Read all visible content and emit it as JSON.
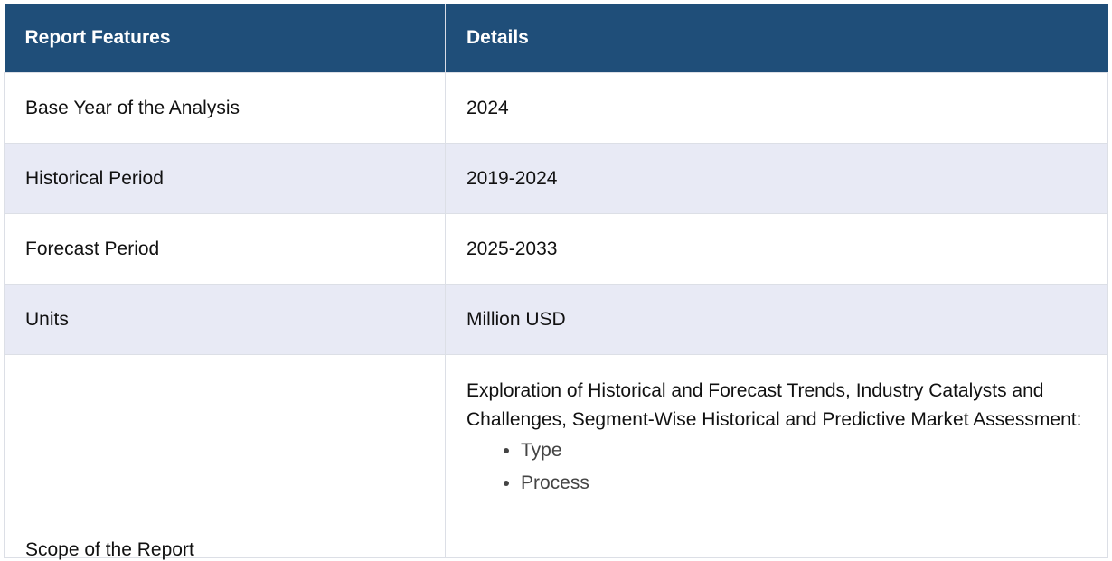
{
  "header": {
    "col1": "Report Features",
    "col2": "Details"
  },
  "rows": [
    {
      "feature": "Base Year of the Analysis",
      "detail": "2024"
    },
    {
      "feature": "Historical Period",
      "detail": "2019-2024"
    },
    {
      "feature": "Forecast Period",
      "detail": "2025-2033"
    },
    {
      "feature": "Units",
      "detail": "Million USD"
    }
  ],
  "scope": {
    "feature": "Scope of the Report",
    "intro": "Exploration of Historical and Forecast Trends, Industry Catalysts and Challenges, Segment-Wise Historical and Predictive Market Assessment:",
    "items": [
      "Type",
      "Process"
    ]
  },
  "colors": {
    "header_bg": "#1f4e79",
    "header_text": "#ffffff",
    "alt_row_bg": "#e8eaf5"
  }
}
